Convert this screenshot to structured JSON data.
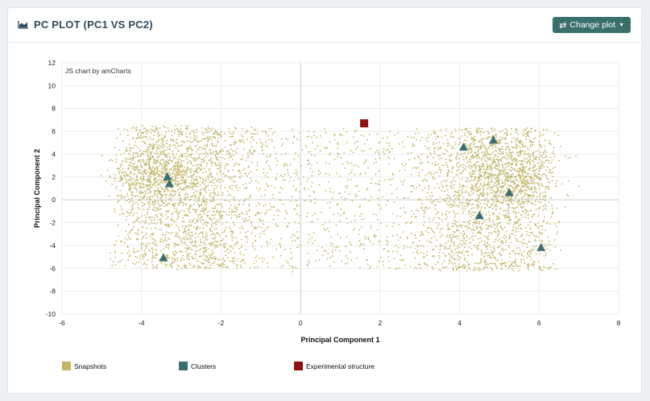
{
  "header": {
    "title": "PC PLOT (PC1 VS PC2)",
    "title_icon": "area-chart-icon",
    "change_button_label": "Change plot",
    "change_button_icon": "exchange-arrows-icon",
    "change_button_caret": "chevron-down-icon",
    "accent_color": "#3a6f6c"
  },
  "chart_data": {
    "type": "scatter",
    "credit": "JS chart by amCharts",
    "xlabel": "Principal Component 1",
    "ylabel": "Principal Component 2",
    "xlim": [
      -6,
      8
    ],
    "ylim": [
      -10,
      12
    ],
    "xticks": [
      -6,
      -4,
      -2,
      0,
      2,
      4,
      6,
      8
    ],
    "yticks": [
      -10,
      -8,
      -6,
      -4,
      -2,
      0,
      2,
      4,
      6,
      8,
      10,
      12
    ],
    "grid": true,
    "legend_position": "bottom-left",
    "series": [
      {
        "name": "Snapshots",
        "marker": "dot",
        "color": "#c2b569",
        "clusters_description_unprinted": null,
        "points": [
          [
            -4.2,
            4.1
          ],
          [
            -3.9,
            2.6
          ],
          [
            -3.6,
            3.3
          ],
          [
            -3.2,
            1.7
          ],
          [
            -3.8,
            -0.4
          ],
          [
            -3.0,
            4.8
          ],
          [
            -2.7,
            2.2
          ],
          [
            -3.5,
            -2.6
          ],
          [
            -4.0,
            -4.3
          ],
          [
            -2.8,
            -5.2
          ],
          [
            -3.3,
            -3.9
          ],
          [
            -2.4,
            0.8
          ],
          [
            -3.7,
            5.3
          ],
          [
            -4.3,
            0.9
          ],
          [
            -2.1,
            -1.8
          ],
          [
            -3.1,
            -6.1
          ],
          [
            -1.9,
            3.6
          ],
          [
            -3.4,
            2.9
          ],
          [
            -2.9,
            1.1
          ],
          [
            -3.6,
            -1.5
          ],
          [
            -1.2,
            4.2
          ],
          [
            -0.6,
            -2.3
          ],
          [
            0.2,
            3.1
          ],
          [
            0.8,
            -4.4
          ],
          [
            1.4,
            1.2
          ],
          [
            -0.9,
            0.4
          ],
          [
            0.5,
            5.6
          ],
          [
            1.1,
            -1.1
          ],
          [
            -1.5,
            -5.4
          ],
          [
            1.9,
            -3.2
          ],
          [
            2.3,
            4.5
          ],
          [
            2.6,
            -0.7
          ],
          [
            -0.2,
            -6.3
          ],
          [
            1.7,
            2.8
          ],
          [
            0.1,
            0.9
          ],
          [
            4.3,
            3.8
          ],
          [
            5.0,
            2.4
          ],
          [
            5.6,
            4.6
          ],
          [
            5.9,
            1.1
          ],
          [
            4.7,
            -0.5
          ],
          [
            5.4,
            -2.8
          ],
          [
            6.1,
            -3.9
          ],
          [
            4.9,
            -5.6
          ],
          [
            5.7,
            3.2
          ],
          [
            6.3,
            0.2
          ],
          [
            4.5,
            1.9
          ],
          [
            5.2,
            -1.6
          ],
          [
            6.0,
            5.1
          ],
          [
            4.1,
            -3.4
          ],
          [
            5.5,
            -6.2
          ],
          [
            6.4,
            -2.1
          ],
          [
            4.8,
            5.5
          ],
          [
            5.8,
            2.0
          ],
          [
            5.1,
            0.6
          ],
          [
            4.4,
            -1.9
          ]
        ]
      },
      {
        "name": "Clusters",
        "marker": "triangle",
        "color": "#3d6e6e",
        "points": [
          [
            -3.35,
            2.0
          ],
          [
            -3.3,
            1.4
          ],
          [
            -3.45,
            -5.1
          ],
          [
            4.1,
            4.6
          ],
          [
            4.85,
            5.2
          ],
          [
            5.25,
            0.6
          ],
          [
            4.5,
            -1.4
          ],
          [
            6.05,
            -4.2
          ]
        ]
      },
      {
        "name": "Experimental structure",
        "marker": "square",
        "color": "#8e1212",
        "points": [
          [
            1.6,
            6.7
          ]
        ]
      }
    ]
  }
}
